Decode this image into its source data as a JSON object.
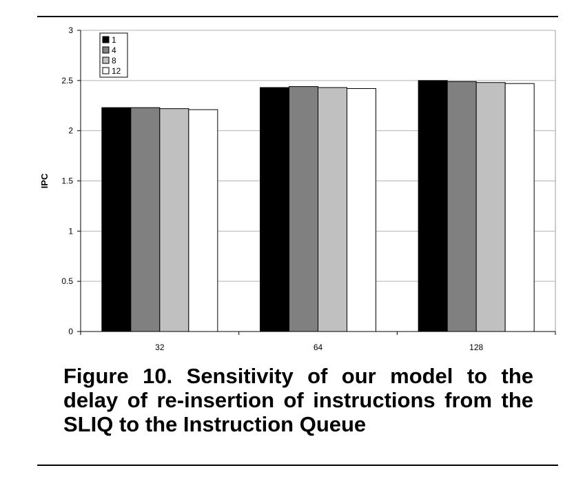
{
  "figure": {
    "caption": "Figure 10. Sensitivity of our model to the delay of re-insertion of instructions from the SLIQ to the Instruction Queue"
  },
  "chart_data": {
    "type": "bar",
    "categories": [
      "32",
      "64",
      "128"
    ],
    "series": [
      {
        "name": "1",
        "color": "#000000",
        "values": [
          2.23,
          2.43,
          2.5
        ]
      },
      {
        "name": "4",
        "color": "#808080",
        "values": [
          2.23,
          2.44,
          2.49
        ]
      },
      {
        "name": "8",
        "color": "#c0c0c0",
        "values": [
          2.22,
          2.43,
          2.48
        ]
      },
      {
        "name": "12",
        "color": "#ffffff",
        "values": [
          2.21,
          2.42,
          2.47
        ]
      }
    ],
    "title": "",
    "xlabel": "",
    "ylabel": "IPC",
    "ylim": [
      0,
      3
    ],
    "yticks": [
      "0",
      "0.5",
      "1",
      "1.5",
      "2",
      "2.5",
      "3"
    ],
    "grid": true,
    "legend_position": "top-left"
  }
}
